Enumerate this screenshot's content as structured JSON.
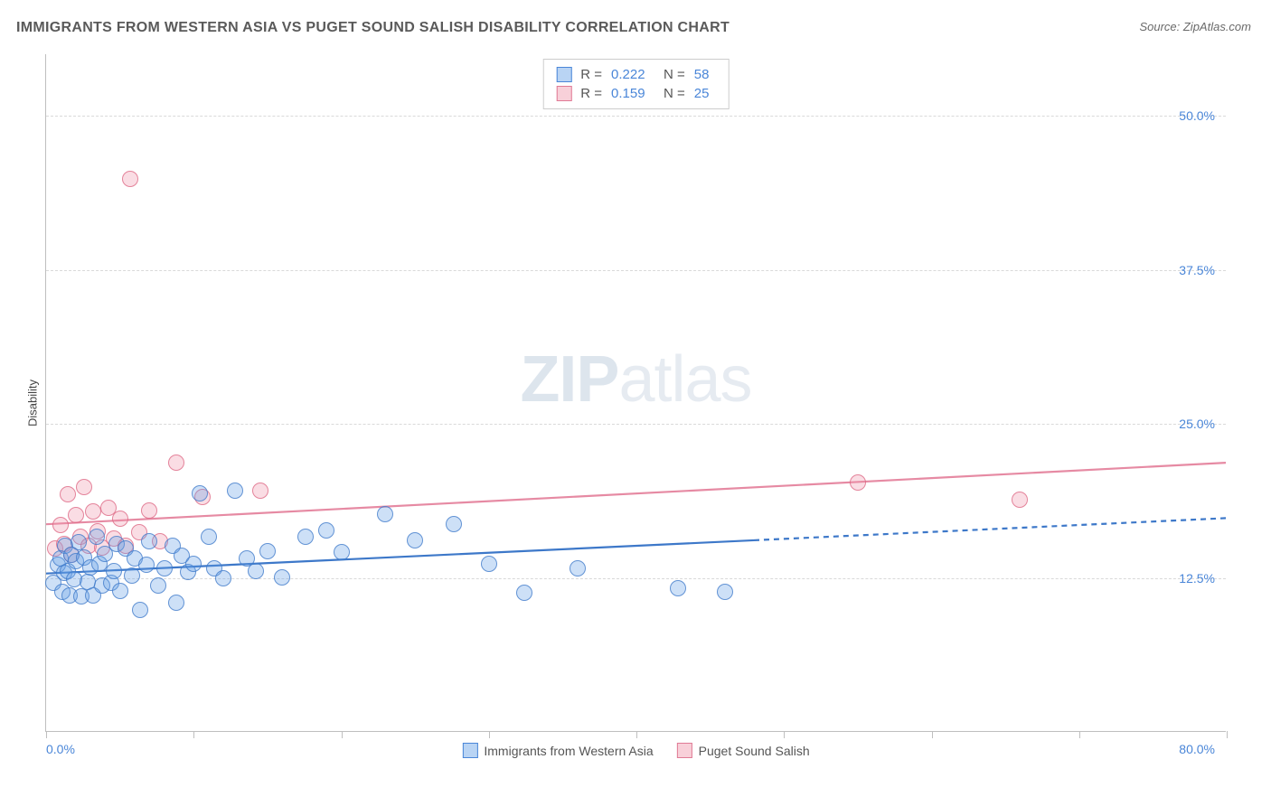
{
  "title": "IMMIGRANTS FROM WESTERN ASIA VS PUGET SOUND SALISH DISABILITY CORRELATION CHART",
  "source_prefix": "Source: ",
  "source_name": "ZipAtlas.com",
  "ylabel": "Disability",
  "watermark_a": "ZIP",
  "watermark_b": "atlas",
  "chart": {
    "type": "scatter",
    "xlim": [
      0,
      80
    ],
    "ylim": [
      0,
      55
    ],
    "xtick_positions": [
      0,
      10,
      20,
      30,
      40,
      50,
      60,
      70,
      80
    ],
    "xlabel_min": "0.0%",
    "xlabel_max": "80.0%",
    "ytick_values": [
      12.5,
      25.0,
      37.5,
      50.0
    ],
    "ytick_labels": [
      "12.5%",
      "25.0%",
      "37.5%",
      "50.0%"
    ],
    "grid_color": "#d9d9d9",
    "background_color": "#ffffff",
    "point_radius": 9
  },
  "series": {
    "blue": {
      "label": "Immigrants from Western Asia",
      "fill": "rgba(100,160,230,0.32)",
      "stroke": "rgba(60,120,200,0.75)",
      "R": "0.222",
      "N": "58",
      "trend": {
        "x1": 0,
        "y1": 12.8,
        "x2_solid": 48,
        "y2_solid": 15.5,
        "x2": 80,
        "y2": 17.3
      },
      "points": [
        [
          0.5,
          12.0
        ],
        [
          0.8,
          13.5
        ],
        [
          1.0,
          14.0
        ],
        [
          1.1,
          11.3
        ],
        [
          1.2,
          12.8
        ],
        [
          1.3,
          15.0
        ],
        [
          1.5,
          13.0
        ],
        [
          1.6,
          11.0
        ],
        [
          1.7,
          14.3
        ],
        [
          1.9,
          12.3
        ],
        [
          2.0,
          13.8
        ],
        [
          2.2,
          15.3
        ],
        [
          2.4,
          10.9
        ],
        [
          2.6,
          14.1
        ],
        [
          2.8,
          12.1
        ],
        [
          3.0,
          13.3
        ],
        [
          3.2,
          11.0
        ],
        [
          3.4,
          15.8
        ],
        [
          3.6,
          13.6
        ],
        [
          3.8,
          11.8
        ],
        [
          4.0,
          14.4
        ],
        [
          4.4,
          12.0
        ],
        [
          4.6,
          13.0
        ],
        [
          4.8,
          15.2
        ],
        [
          5.0,
          11.4
        ],
        [
          5.4,
          14.8
        ],
        [
          5.8,
          12.6
        ],
        [
          6.0,
          14.0
        ],
        [
          6.4,
          9.8
        ],
        [
          6.8,
          13.5
        ],
        [
          7.0,
          15.4
        ],
        [
          7.6,
          11.8
        ],
        [
          8.0,
          13.2
        ],
        [
          8.6,
          15.0
        ],
        [
          8.8,
          10.4
        ],
        [
          9.2,
          14.2
        ],
        [
          9.6,
          12.9
        ],
        [
          10.0,
          13.6
        ],
        [
          10.4,
          19.3
        ],
        [
          11.0,
          15.8
        ],
        [
          11.4,
          13.2
        ],
        [
          12.0,
          12.4
        ],
        [
          12.8,
          19.5
        ],
        [
          13.6,
          14.0
        ],
        [
          14.2,
          13.0
        ],
        [
          15.0,
          14.6
        ],
        [
          16.0,
          12.5
        ],
        [
          17.6,
          15.8
        ],
        [
          19.0,
          16.3
        ],
        [
          20.0,
          14.5
        ],
        [
          23.0,
          17.6
        ],
        [
          25.0,
          15.5
        ],
        [
          27.6,
          16.8
        ],
        [
          30.0,
          13.6
        ],
        [
          32.4,
          11.2
        ],
        [
          36.0,
          13.2
        ],
        [
          42.8,
          11.6
        ],
        [
          46.0,
          11.3
        ]
      ]
    },
    "pink": {
      "label": "Puget Sound Salish",
      "fill": "rgba(240,150,170,0.32)",
      "stroke": "rgba(220,100,130,0.75)",
      "R": "0.159",
      "N": "25",
      "trend": {
        "x1": 0,
        "y1": 16.8,
        "x2": 80,
        "y2": 21.8
      },
      "points": [
        [
          0.6,
          14.8
        ],
        [
          1.0,
          16.7
        ],
        [
          1.2,
          15.2
        ],
        [
          1.5,
          19.2
        ],
        [
          1.7,
          14.3
        ],
        [
          2.0,
          17.5
        ],
        [
          2.3,
          15.8
        ],
        [
          2.6,
          19.8
        ],
        [
          2.9,
          15.0
        ],
        [
          3.2,
          17.8
        ],
        [
          3.5,
          16.2
        ],
        [
          3.8,
          14.9
        ],
        [
          4.2,
          18.1
        ],
        [
          4.6,
          15.6
        ],
        [
          5.0,
          17.2
        ],
        [
          5.4,
          15.0
        ],
        [
          5.7,
          44.8
        ],
        [
          6.3,
          16.1
        ],
        [
          7.0,
          17.9
        ],
        [
          7.7,
          15.4
        ],
        [
          8.8,
          21.8
        ],
        [
          10.6,
          19.0
        ],
        [
          14.5,
          19.5
        ],
        [
          55.0,
          20.2
        ],
        [
          66.0,
          18.8
        ]
      ]
    }
  },
  "stat_labels": {
    "R": "R =",
    "N": "N ="
  }
}
